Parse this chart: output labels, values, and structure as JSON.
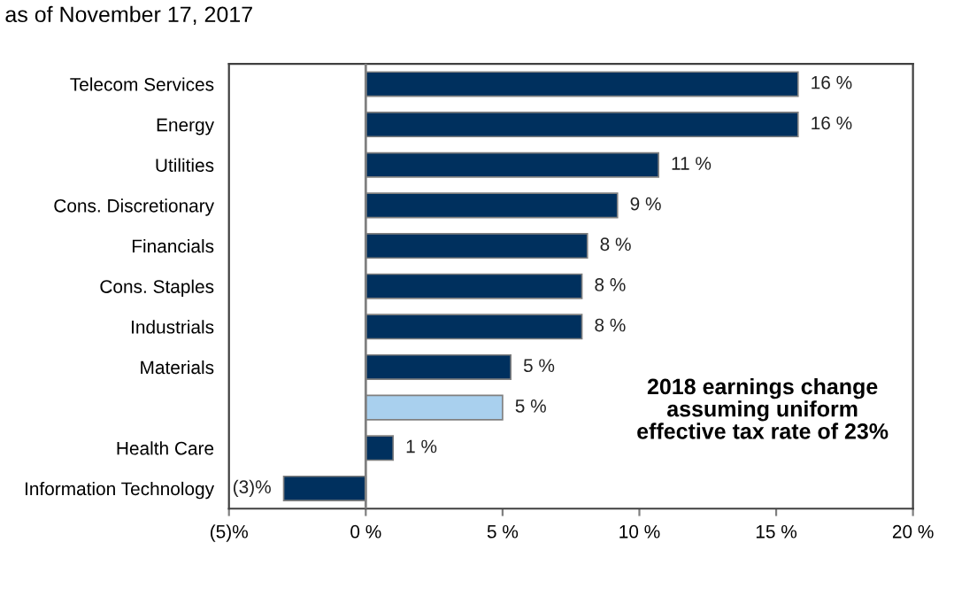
{
  "chart_data": {
    "type": "bar",
    "orientation": "horizontal",
    "title": "as of November 17, 2017",
    "categories": [
      "Telecom Services",
      "Energy",
      "Utilities",
      "Cons. Discretionary",
      "Financials",
      "Cons. Staples",
      "Industrials",
      "Materials",
      null,
      "Health Care",
      "Information Technology"
    ],
    "values": [
      15.8,
      15.8,
      10.7,
      9.2,
      8.1,
      7.9,
      7.9,
      5.3,
      5.0,
      1.0,
      -3.0
    ],
    "colors": [
      "#00305e",
      "#00305e",
      "#00305e",
      "#00305e",
      "#00305e",
      "#00305e",
      "#00305e",
      "#00305e",
      "#a9d0ee",
      "#00305e",
      "#00305e"
    ],
    "value_labels": [
      "16 %",
      "16 %",
      "11 %",
      "9 %",
      "8 %",
      "8 %",
      "8 %",
      "5 %",
      "5 %",
      "1 %",
      "(3)%"
    ],
    "xlim": [
      -5,
      20
    ],
    "xticks": [
      {
        "value": -5,
        "label": "(5)%"
      },
      {
        "value": 0,
        "label": "0 %"
      },
      {
        "value": 5,
        "label": "5 %"
      },
      {
        "value": 10,
        "label": "10 %"
      },
      {
        "value": 15,
        "label": "15 %"
      },
      {
        "value": 20,
        "label": "20 %"
      }
    ],
    "ref_lines": [
      {
        "axis": "x",
        "value": 0,
        "color": "#808080"
      }
    ],
    "annotations": [
      "2018 earnings change\nassuming uniform\neffective tax rate of 23%"
    ],
    "grid": false
  }
}
